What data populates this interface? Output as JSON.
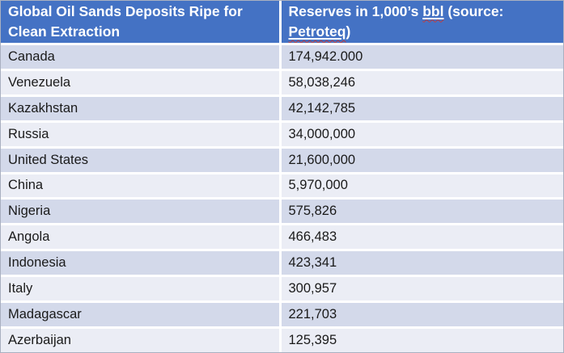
{
  "colors": {
    "header_bg": "#4472C4",
    "header_text": "#FFFFFF",
    "row_odd": "#D3D9EA",
    "row_even": "#EBEDF5",
    "body_text": "#1A1A1A",
    "divider": "#FFFFFF",
    "outer_border": "#A9B0C0",
    "spellcheck": "#C23B3B"
  },
  "table": {
    "header": {
      "col1": "Global Oil Sands Deposits Ripe for Clean Extraction",
      "col2_prefix": "Reserves in 1,000’s ",
      "col2_bbl": "bbl",
      "col2_mid": " (source: ",
      "col2_source": "Petroteq",
      "col2_suffix": ")"
    },
    "rows": [
      {
        "country": "Canada",
        "reserves": "174,942.000"
      },
      {
        "country": "Venezuela",
        "reserves": "58,038,246"
      },
      {
        "country": "Kazakhstan",
        "reserves": "42,142,785"
      },
      {
        "country": "Russia",
        "reserves": "34,000,000"
      },
      {
        "country": "United States",
        "reserves": "21,600,000"
      },
      {
        "country": "China",
        "reserves": "5,970,000"
      },
      {
        "country": "Nigeria",
        "reserves": "575,826"
      },
      {
        "country": "Angola",
        "reserves": "466,483"
      },
      {
        "country": "Indonesia",
        "reserves": "423,341"
      },
      {
        "country": "Italy",
        "reserves": "300,957"
      },
      {
        "country": "Madagascar",
        "reserves": "221,703"
      },
      {
        "country": "Azerbaijan",
        "reserves": "125,395"
      }
    ]
  },
  "chart_data": {
    "type": "table",
    "title": "Global Oil Sands Deposits Ripe for Clean Extraction",
    "columns": [
      "Global Oil Sands Deposits Ripe for Clean Extraction",
      "Reserves in 1,000’s bbl (source: Petroteq)"
    ],
    "unit": "1,000's bbl",
    "source": "Petroteq",
    "categories": [
      "Canada",
      "Venezuela",
      "Kazakhstan",
      "Russia",
      "United States",
      "China",
      "Nigeria",
      "Angola",
      "Indonesia",
      "Italy",
      "Madagascar",
      "Azerbaijan"
    ],
    "values": [
      174942.0,
      58038246,
      42142785,
      34000000,
      21600000,
      5970000,
      575826,
      466483,
      423341,
      300957,
      221703,
      125395
    ]
  }
}
